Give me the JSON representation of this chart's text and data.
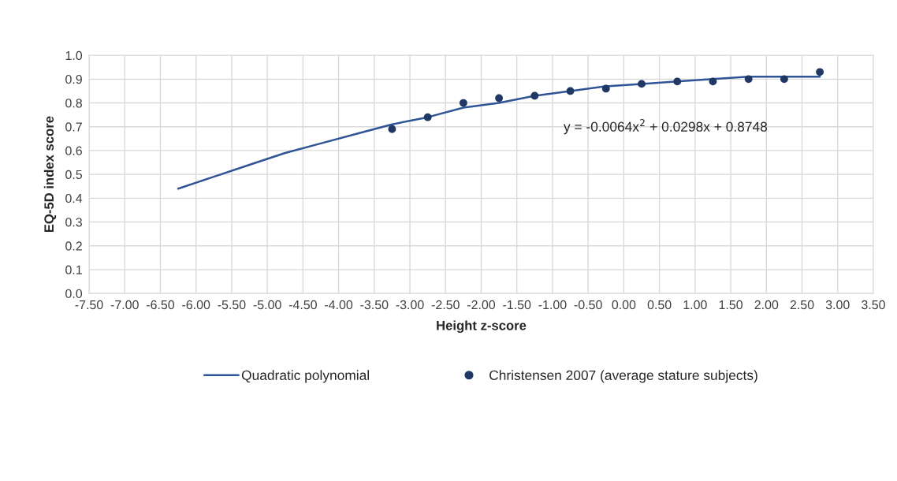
{
  "chart_data": {
    "type": "scatter",
    "xlabel": "Height z-score",
    "ylabel": "EQ-5D index score",
    "series": [
      {
        "name": "Quadratic polynomial",
        "type": "line",
        "color": "#2f5597",
        "marker": "none",
        "x": [
          -6.25,
          -5.75,
          -5.25,
          -4.75,
          -4.25,
          -3.75,
          -3.25,
          -2.75,
          -2.25,
          -1.75,
          -1.25,
          -0.75,
          -0.25,
          0.25,
          0.75,
          1.25,
          1.75,
          2.25,
          2.75
        ],
        "values": [
          0.44,
          0.49,
          0.54,
          0.59,
          0.63,
          0.67,
          0.71,
          0.74,
          0.78,
          0.8,
          0.83,
          0.85,
          0.87,
          0.88,
          0.89,
          0.9,
          0.91,
          0.91,
          0.91
        ]
      },
      {
        "name": "Christensen 2007 (average stature subjects)",
        "color": "#1f3864",
        "marker": "circle",
        "x": [
          -3.25,
          -2.75,
          -2.25,
          -1.75,
          -1.25,
          -0.75,
          -0.25,
          0.25,
          0.75,
          1.25,
          1.75,
          2.25,
          2.75
        ],
        "values": [
          0.69,
          0.74,
          0.8,
          0.82,
          0.83,
          0.85,
          0.86,
          0.88,
          0.89,
          0.89,
          0.9,
          0.9,
          0.93
        ]
      }
    ],
    "annotations": [
      "y = -0.0064x$^{2}$ + 0.0298x + 0.8748"
    ],
    "xlim": [
      -7.5,
      3.5
    ],
    "xticks": [
      {
        "value": -7.5,
        "label": "-7.50"
      },
      {
        "value": -7.0,
        "label": "-7.00"
      },
      {
        "value": -6.5,
        "label": "-6.50"
      },
      {
        "value": -6.0,
        "label": "-6.00"
      },
      {
        "value": -5.5,
        "label": "-5.50"
      },
      {
        "value": -5.0,
        "label": "-5.00"
      },
      {
        "value": -4.5,
        "label": "-4.50"
      },
      {
        "value": -4.0,
        "label": "-4.00"
      },
      {
        "value": -3.5,
        "label": "-3.50"
      },
      {
        "value": -3.0,
        "label": "-3.00"
      },
      {
        "value": -2.5,
        "label": "-2.50"
      },
      {
        "value": -2.0,
        "label": "-2.00"
      },
      {
        "value": -1.5,
        "label": "-1.50"
      },
      {
        "value": -1.0,
        "label": "-1.00"
      },
      {
        "value": -0.5,
        "label": "-0.50"
      },
      {
        "value": 0.0,
        "label": "0.00"
      },
      {
        "value": 0.5,
        "label": "0.50"
      },
      {
        "value": 1.0,
        "label": "1.00"
      },
      {
        "value": 1.5,
        "label": "1.50"
      },
      {
        "value": 2.0,
        "label": "2.00"
      },
      {
        "value": 2.5,
        "label": "2.50"
      },
      {
        "value": 3.0,
        "label": "3.00"
      },
      {
        "value": 3.5,
        "label": "3.50"
      }
    ],
    "ylim": [
      0,
      1.0
    ],
    "yticks": [
      {
        "value": 0,
        "label": "0.0"
      },
      {
        "value": 0.1,
        "label": "0.1"
      },
      {
        "value": 0.2,
        "label": "0.2"
      },
      {
        "value": 0.3,
        "label": "0.3"
      },
      {
        "value": 0.4,
        "label": "0.4"
      },
      {
        "value": 0.5,
        "label": "0.5"
      },
      {
        "value": 0.6,
        "label": "0.6"
      },
      {
        "value": 0.7,
        "label": "0.7"
      },
      {
        "value": 0.8,
        "label": "0.8"
      },
      {
        "value": 0.9,
        "label": "0.9"
      },
      {
        "value": 1.0,
        "label": "1.0"
      }
    ],
    "grid": true,
    "legend": "bottom"
  }
}
